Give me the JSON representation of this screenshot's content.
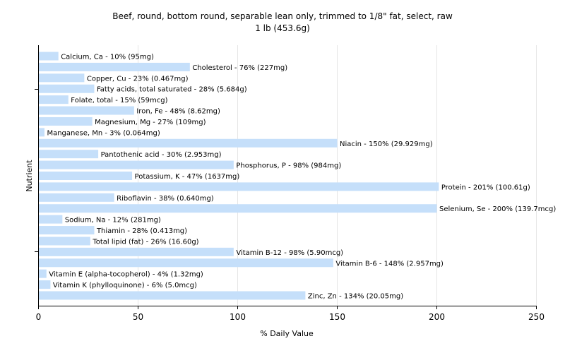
{
  "chart_data": {
    "type": "bar",
    "orientation": "horizontal",
    "title": "Beef, round, bottom round, separable lean only, trimmed to 1/8\" fat, select, raw",
    "subtitle": "1 lb (453.6g)",
    "xlabel": "% Daily Value",
    "ylabel": "Nutrient",
    "xlim": [
      0,
      250
    ],
    "xticks": [
      0,
      50,
      100,
      150,
      200,
      250
    ],
    "grid": true,
    "bar_color": "#c5dffa",
    "grid_color": "#e6e6e6",
    "categories": [
      "Calcium, Ca",
      "Cholesterol",
      "Copper, Cu",
      "Fatty acids, total saturated",
      "Folate, total",
      "Iron, Fe",
      "Magnesium, Mg",
      "Manganese, Mn",
      "Niacin",
      "Pantothenic acid",
      "Phosphorus, P",
      "Potassium, K",
      "Protein",
      "Riboflavin",
      "Selenium, Se",
      "Sodium, Na",
      "Thiamin",
      "Total lipid (fat)",
      "Vitamin B-12",
      "Vitamin B-6",
      "Vitamin E (alpha-tocopherol)",
      "Vitamin K (phylloquinone)",
      "Zinc, Zn"
    ],
    "values": [
      10,
      76,
      23,
      28,
      15,
      48,
      27,
      3,
      150,
      30,
      98,
      47,
      201,
      38,
      200,
      12,
      28,
      26,
      98,
      148,
      4,
      6,
      134
    ],
    "labels": [
      "Calcium, Ca - 10% (95mg)",
      "Cholesterol - 76% (227mg)",
      "Copper, Cu - 23% (0.467mg)",
      "Fatty acids, total saturated - 28% (5.684g)",
      "Folate, total - 15% (59mcg)",
      "Iron, Fe - 48% (8.62mg)",
      "Magnesium, Mg - 27% (109mg)",
      "Manganese, Mn - 3% (0.064mg)",
      "Niacin - 150% (29.929mg)",
      "Pantothenic acid - 30% (2.953mg)",
      "Phosphorus, P - 98% (984mg)",
      "Potassium, K - 47% (1637mg)",
      "Protein - 201% (100.61g)",
      "Riboflavin - 38% (0.640mg)",
      "Selenium, Se - 200% (139.7mcg)",
      "Sodium, Na - 12% (281mg)",
      "Thiamin - 28% (0.413mg)",
      "Total lipid (fat) - 26% (16.60g)",
      "Vitamin B-12 - 98% (5.90mcg)",
      "Vitamin B-6 - 148% (2.957mg)",
      "Vitamin E (alpha-tocopherol) - 4% (1.32mg)",
      "Vitamin K (phylloquinone) - 6% (5.0mcg)",
      "Zinc, Zn - 134% (20.05mg)"
    ]
  }
}
